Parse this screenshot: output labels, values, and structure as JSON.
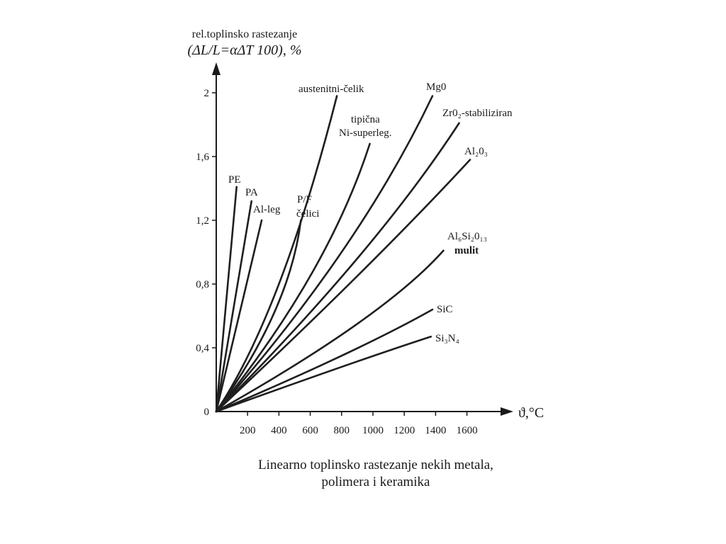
{
  "chart_data": {
    "type": "line",
    "title": "",
    "ylabel_line1": "rel.toplinsko rastezanje",
    "ylabel_line2": "(ΔL/L=αΔT 100), %",
    "xlabel": "ϑ,°C",
    "xlim": [
      0,
      1800
    ],
    "ylim": [
      0,
      2.0
    ],
    "x_ticks": [
      200,
      400,
      600,
      800,
      1000,
      1200,
      1400,
      1600
    ],
    "y_ticks": [
      0,
      0.4,
      0.8,
      1.2,
      1.6,
      2
    ],
    "y_tick_labels": [
      "0",
      "0,4",
      "0,8",
      "1,2",
      "1,6",
      "2"
    ],
    "series": [
      {
        "name": "PE",
        "x": [
          0,
          130
        ],
        "y": [
          0,
          1.41
        ]
      },
      {
        "name": "PA",
        "x": [
          0,
          225
        ],
        "y": [
          0,
          1.32
        ]
      },
      {
        "name": "Al-leg",
        "x": [
          0,
          290
        ],
        "y": [
          0,
          1.2
        ]
      },
      {
        "name": "P/F čelici",
        "x": [
          0,
          370,
          540
        ],
        "y": [
          0,
          0.62,
          1.2
        ]
      },
      {
        "name": "austenitni-čelik",
        "x": [
          0,
          400,
          770
        ],
        "y": [
          0,
          0.8,
          1.98
        ]
      },
      {
        "name": "tipična Ni-superleg.",
        "x": [
          0,
          600,
          980
        ],
        "y": [
          0,
          0.85,
          1.68
        ]
      },
      {
        "name": "Mg0",
        "x": [
          0,
          800,
          1380
        ],
        "y": [
          0,
          1.0,
          1.98
        ]
      },
      {
        "name": "Zr0₂-stabiliziran",
        "x": [
          0,
          900,
          1550
        ],
        "y": [
          0,
          0.96,
          1.81
        ]
      },
      {
        "name": "Al₂0₃",
        "x": [
          0,
          900,
          1620
        ],
        "y": [
          0,
          0.85,
          1.58
        ]
      },
      {
        "name": "Al₆Si₂0₁₃ mulit",
        "x": [
          0,
          900,
          1450
        ],
        "y": [
          0,
          0.55,
          1.01
        ]
      },
      {
        "name": "SiC",
        "x": [
          0,
          800,
          1380
        ],
        "y": [
          0,
          0.35,
          0.64
        ]
      },
      {
        "name": "Si₃N₄",
        "x": [
          0,
          800,
          1370
        ],
        "y": [
          0,
          0.28,
          0.47
        ]
      }
    ]
  },
  "caption_line1": "Linearno toplinsko rastezanje nekih metala,",
  "caption_line2": "polimera i keramika"
}
